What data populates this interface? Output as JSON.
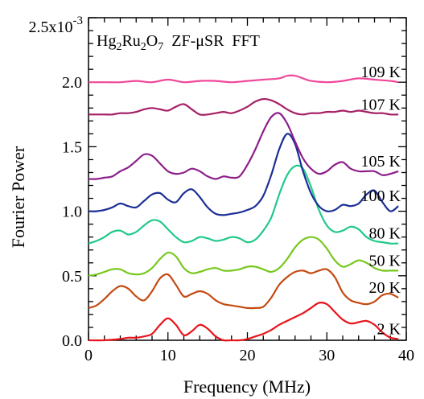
{
  "chart_data": {
    "type": "line",
    "title": "Hg2Ru2O7  ZF-μSR  FFT",
    "xlabel": "Frequency  (MHz)",
    "ylabel": "Fourier Power",
    "xlim": [
      0,
      40
    ],
    "ylim": [
      0,
      0.0025
    ],
    "y_exponent_label": "2.5x10",
    "y_exponent_sup": "-3",
    "x_ticks": [
      0,
      10,
      20,
      30,
      40
    ],
    "x_tick_labels": [
      "0",
      "10",
      "20",
      "30",
      "40"
    ],
    "y_ticks": [
      0.0,
      0.0005,
      0.001,
      0.0015,
      0.002
    ],
    "y_tick_labels": [
      "0.0",
      "0.5",
      "1.0",
      "1.5",
      "2.0"
    ],
    "grid": false,
    "series": [
      {
        "name": "2 K",
        "color": "#e8141c",
        "x": [
          0,
          2,
          4,
          5,
          6,
          7,
          8,
          9,
          10,
          11,
          12,
          13,
          14,
          15,
          16,
          17,
          18,
          19,
          20,
          21,
          22,
          23,
          24,
          25,
          26,
          27,
          28,
          29,
          30,
          31,
          32,
          33,
          34,
          35,
          36,
          37,
          38,
          39
        ],
        "y": [
          0.0,
          0.0,
          1e-05,
          2e-05,
          2e-05,
          3e-05,
          5e-05,
          0.00012,
          0.00017,
          0.00012,
          4e-05,
          7e-05,
          0.00012,
          9e-05,
          3e-05,
          0.0,
          0.0,
          0.0,
          1e-05,
          3e-05,
          5e-05,
          8e-05,
          0.00012,
          0.00015,
          0.00018,
          0.00021,
          0.00025,
          0.00029,
          0.00028,
          0.00022,
          0.00016,
          0.00013,
          0.00014,
          0.00015,
          0.00012,
          6e-05,
          2e-05,
          1e-05
        ]
      },
      {
        "name": "20 K",
        "color": "#c44a12",
        "x": [
          0,
          1,
          2,
          3,
          4,
          5,
          6,
          7,
          8,
          9,
          10,
          11,
          12,
          13,
          14,
          15,
          16,
          17,
          18,
          19,
          20,
          21,
          22,
          23,
          24,
          25,
          26,
          27,
          28,
          29,
          30,
          31,
          32,
          33,
          34,
          35,
          36,
          37,
          38,
          39
        ],
        "y": [
          0.00025,
          0.00027,
          0.00032,
          0.00038,
          0.00042,
          0.0004,
          0.00034,
          0.00031,
          0.00038,
          0.00048,
          0.00051,
          0.00043,
          0.00034,
          0.00036,
          0.00038,
          0.00036,
          0.00031,
          0.00028,
          0.00027,
          0.00026,
          0.00025,
          0.00025,
          0.00026,
          0.00033,
          0.00043,
          0.00049,
          0.00053,
          0.00054,
          0.00052,
          0.00054,
          0.00055,
          0.00049,
          0.00037,
          0.00031,
          0.00029,
          0.00028,
          0.0003,
          0.00035,
          0.00036,
          0.00033
        ]
      },
      {
        "name": "50 K",
        "color": "#77c81e",
        "x": [
          0,
          1,
          2,
          3,
          4,
          5,
          6,
          7,
          8,
          9,
          10,
          11,
          12,
          13,
          14,
          15,
          16,
          17,
          18,
          19,
          20,
          21,
          22,
          23,
          24,
          25,
          26,
          27,
          28,
          29,
          30,
          31,
          32,
          33,
          34,
          35,
          36,
          37,
          38,
          39
        ],
        "y": [
          0.0005,
          0.00051,
          0.00053,
          0.00055,
          0.00055,
          0.00052,
          0.00051,
          0.00052,
          0.00056,
          0.00063,
          0.00068,
          0.00065,
          0.00056,
          0.00052,
          0.00053,
          0.00055,
          0.00056,
          0.00054,
          0.00054,
          0.00055,
          0.00057,
          0.00057,
          0.00055,
          0.00053,
          0.00056,
          0.00063,
          0.00072,
          0.00078,
          0.0008,
          0.00078,
          0.00071,
          0.00062,
          0.00057,
          0.00059,
          0.00062,
          0.0006,
          0.00056,
          0.00054,
          0.00054,
          0.00054
        ]
      },
      {
        "name": "80 K",
        "color": "#21c98a",
        "x": [
          0,
          1,
          2,
          3,
          4,
          5,
          6,
          7,
          8,
          9,
          10,
          11,
          12,
          13,
          14,
          15,
          16,
          17,
          18,
          19,
          20,
          21,
          22,
          23,
          24,
          25,
          26,
          27,
          28,
          29,
          30,
          31,
          32,
          33,
          34,
          35,
          36,
          37,
          38,
          39
        ],
        "y": [
          0.00075,
          0.00077,
          0.0008,
          0.00084,
          0.00085,
          0.00082,
          0.00084,
          0.00089,
          0.00093,
          0.00092,
          0.00086,
          0.0008,
          0.00076,
          0.00077,
          0.0008,
          0.00079,
          0.00077,
          0.00078,
          0.0008,
          0.00079,
          0.00076,
          0.00078,
          0.00085,
          0.00095,
          0.00113,
          0.00128,
          0.00135,
          0.00133,
          0.00119,
          0.00101,
          0.00089,
          0.00084,
          0.00085,
          0.00088,
          0.00086,
          0.0008,
          0.00077,
          0.00076,
          0.00075,
          0.00075
        ]
      },
      {
        "name": "100 K",
        "color": "#1b2f96",
        "x": [
          0,
          1,
          2,
          3,
          4,
          5,
          6,
          7,
          8,
          9,
          10,
          11,
          12,
          13,
          14,
          15,
          16,
          17,
          18,
          19,
          20,
          21,
          22,
          23,
          24,
          25,
          26,
          27,
          28,
          29,
          30,
          31,
          32,
          33,
          34,
          35,
          36,
          37,
          38,
          39
        ],
        "y": [
          0.001,
          0.001,
          0.00101,
          0.00103,
          0.00106,
          0.00104,
          0.00103,
          0.00108,
          0.00113,
          0.00114,
          0.00109,
          0.00107,
          0.00114,
          0.00117,
          0.00111,
          0.00103,
          0.00098,
          0.00097,
          0.00098,
          0.00099,
          0.00101,
          0.00104,
          0.00112,
          0.00128,
          0.00148,
          0.0016,
          0.00152,
          0.00131,
          0.00114,
          0.00104,
          0.001,
          0.00101,
          0.00105,
          0.00104,
          0.00106,
          0.00113,
          0.00116,
          0.00107,
          0.001,
          0.00104
        ]
      },
      {
        "name": "105 K",
        "color": "#8c1f8a",
        "x": [
          0,
          1,
          2,
          3,
          4,
          5,
          6,
          7,
          8,
          9,
          10,
          11,
          12,
          13,
          14,
          15,
          16,
          17,
          18,
          19,
          20,
          21,
          22,
          23,
          24,
          25,
          26,
          27,
          28,
          29,
          30,
          31,
          32,
          33,
          34,
          35,
          36,
          37,
          38,
          39
        ],
        "y": [
          0.00125,
          0.00125,
          0.00126,
          0.00127,
          0.00131,
          0.00134,
          0.00139,
          0.00144,
          0.00143,
          0.00137,
          0.00131,
          0.00129,
          0.0013,
          0.00133,
          0.00131,
          0.00127,
          0.00125,
          0.00127,
          0.00126,
          0.00127,
          0.00136,
          0.00148,
          0.00162,
          0.00173,
          0.00176,
          0.00168,
          0.00154,
          0.00141,
          0.00133,
          0.00129,
          0.00131,
          0.00136,
          0.00138,
          0.00133,
          0.00131,
          0.00131,
          0.00131,
          0.00128,
          0.00129,
          0.00131
        ]
      },
      {
        "name": "107 K",
        "color": "#a51f65",
        "x": [
          0,
          1,
          2,
          3,
          4,
          5,
          6,
          7,
          8,
          9,
          10,
          11,
          12,
          13,
          14,
          15,
          16,
          17,
          18,
          19,
          20,
          21,
          22,
          23,
          24,
          25,
          26,
          27,
          28,
          29,
          30,
          31,
          32,
          33,
          34,
          35,
          36,
          37,
          38,
          39
        ],
        "y": [
          0.00175,
          0.00175,
          0.00175,
          0.00175,
          0.00176,
          0.00176,
          0.00177,
          0.00179,
          0.0018,
          0.00179,
          0.00178,
          0.00181,
          0.00183,
          0.00179,
          0.00175,
          0.00175,
          0.00176,
          0.00177,
          0.00176,
          0.00178,
          0.00181,
          0.00185,
          0.00187,
          0.00186,
          0.00183,
          0.00179,
          0.00176,
          0.00175,
          0.00176,
          0.00176,
          0.00177,
          0.00177,
          0.00178,
          0.00177,
          0.00178,
          0.00177,
          0.00176,
          0.00176,
          0.00175,
          0.00175
        ]
      },
      {
        "name": "109 K",
        "color": "#f0479a",
        "x": [
          0,
          2,
          4,
          6,
          8,
          10,
          12,
          14,
          16,
          18,
          20,
          22,
          24,
          25,
          26,
          27,
          28,
          30,
          32,
          34,
          36,
          38,
          39
        ],
        "y": [
          0.002,
          0.002,
          0.002,
          0.00201,
          0.002,
          0.00202,
          0.002,
          0.00201,
          0.00201,
          0.002,
          0.00201,
          0.00202,
          0.00203,
          0.00205,
          0.00205,
          0.00203,
          0.00201,
          0.002,
          0.00201,
          0.00203,
          0.00202,
          0.00201,
          0.002
        ]
      }
    ]
  }
}
